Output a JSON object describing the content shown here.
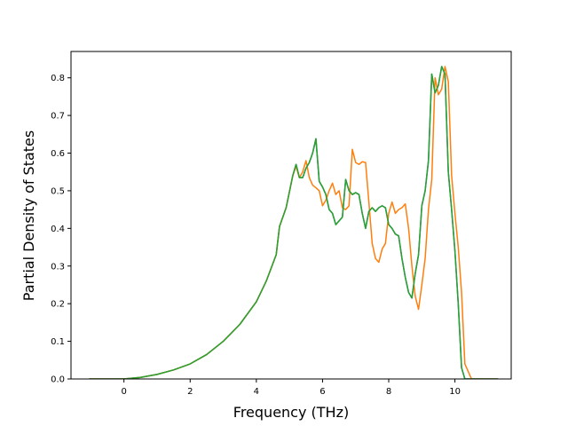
{
  "chart_data": {
    "type": "line",
    "xlabel": "Frequency (THz)",
    "ylabel": "Partial Density of States",
    "xlim": [
      -1.6,
      11.7
    ],
    "ylim": [
      0,
      0.87
    ],
    "xticks": [
      0,
      2,
      4,
      6,
      8,
      10
    ],
    "yticks": [
      0.0,
      0.1,
      0.2,
      0.3,
      0.4,
      0.5,
      0.6,
      0.7,
      0.8
    ],
    "xtick_labels": [
      "0",
      "2",
      "4",
      "6",
      "8",
      "10"
    ],
    "ytick_labels": [
      "0.0",
      "0.1",
      "0.2",
      "0.3",
      "0.4",
      "0.5",
      "0.6",
      "0.7",
      "0.8"
    ],
    "grid": false,
    "series": [
      {
        "color": "#1f77b4",
        "x": [
          -1.05,
          0.0,
          0.5,
          1.0,
          1.5,
          2.0,
          2.5,
          3.0,
          3.5,
          4.0,
          4.3,
          4.6,
          4.7,
          4.9,
          5.1,
          5.2,
          5.3,
          5.4,
          5.5,
          5.6,
          5.7,
          5.8,
          5.9,
          6.0,
          6.1,
          6.2,
          6.3,
          6.4,
          6.5,
          6.6,
          6.7,
          6.8,
          6.9,
          7.0,
          7.1,
          7.2,
          7.3,
          7.4,
          7.5,
          7.6,
          7.7,
          7.8,
          7.9,
          8.0,
          8.1,
          8.2,
          8.3,
          8.4,
          8.5,
          8.6,
          8.7,
          8.8,
          8.9,
          9.0,
          9.1,
          9.2,
          9.3,
          9.4,
          9.5,
          9.6,
          9.7,
          9.8,
          9.9,
          10.0,
          10.1,
          10.2,
          10.3,
          10.5,
          11.3
        ],
        "y": [
          0.0,
          0.0,
          0.004,
          0.012,
          0.024,
          0.04,
          0.065,
          0.1,
          0.145,
          0.205,
          0.26,
          0.33,
          0.405,
          0.455,
          0.54,
          0.57,
          0.535,
          0.535,
          0.56,
          0.575,
          0.6,
          0.638,
          0.525,
          0.51,
          0.49,
          0.45,
          0.44,
          0.41,
          0.42,
          0.43,
          0.53,
          0.5,
          0.49,
          0.495,
          0.49,
          0.44,
          0.4,
          0.445,
          0.455,
          0.445,
          0.455,
          0.46,
          0.455,
          0.41,
          0.4,
          0.385,
          0.38,
          0.32,
          0.27,
          0.23,
          0.215,
          0.28,
          0.33,
          0.46,
          0.5,
          0.58,
          0.81,
          0.76,
          0.78,
          0.83,
          0.81,
          0.55,
          0.45,
          0.34,
          0.2,
          0.03,
          0.0,
          0.0,
          0.0
        ]
      },
      {
        "color": "#ff7f0e",
        "x": [
          -1.05,
          0.0,
          0.5,
          1.0,
          1.5,
          2.0,
          2.5,
          3.0,
          3.5,
          4.0,
          4.3,
          4.6,
          4.7,
          4.9,
          5.1,
          5.2,
          5.3,
          5.4,
          5.5,
          5.6,
          5.7,
          5.8,
          5.9,
          6.0,
          6.1,
          6.2,
          6.3,
          6.4,
          6.5,
          6.6,
          6.7,
          6.8,
          6.9,
          7.0,
          7.1,
          7.2,
          7.3,
          7.4,
          7.5,
          7.6,
          7.7,
          7.8,
          7.9,
          8.0,
          8.1,
          8.2,
          8.3,
          8.4,
          8.5,
          8.6,
          8.7,
          8.8,
          8.9,
          9.0,
          9.1,
          9.2,
          9.3,
          9.4,
          9.5,
          9.6,
          9.7,
          9.8,
          9.9,
          10.0,
          10.1,
          10.2,
          10.3,
          10.5,
          11.3
        ],
        "y": [
          0.0,
          0.0,
          0.004,
          0.012,
          0.024,
          0.04,
          0.065,
          0.1,
          0.145,
          0.205,
          0.26,
          0.33,
          0.405,
          0.455,
          0.54,
          0.565,
          0.535,
          0.55,
          0.58,
          0.535,
          0.515,
          0.508,
          0.5,
          0.46,
          0.475,
          0.5,
          0.52,
          0.49,
          0.5,
          0.455,
          0.45,
          0.46,
          0.61,
          0.575,
          0.57,
          0.577,
          0.575,
          0.47,
          0.36,
          0.32,
          0.31,
          0.345,
          0.36,
          0.44,
          0.47,
          0.44,
          0.45,
          0.455,
          0.465,
          0.4,
          0.3,
          0.22,
          0.185,
          0.25,
          0.32,
          0.45,
          0.53,
          0.8,
          0.755,
          0.77,
          0.83,
          0.79,
          0.54,
          0.44,
          0.35,
          0.23,
          0.04,
          0.0,
          0.0
        ]
      },
      {
        "color": "#2ca02c",
        "x": [
          -1.05,
          0.0,
          0.5,
          1.0,
          1.5,
          2.0,
          2.5,
          3.0,
          3.5,
          4.0,
          4.3,
          4.6,
          4.7,
          4.9,
          5.1,
          5.2,
          5.3,
          5.4,
          5.5,
          5.6,
          5.7,
          5.8,
          5.9,
          6.0,
          6.1,
          6.2,
          6.3,
          6.4,
          6.5,
          6.6,
          6.7,
          6.8,
          6.9,
          7.0,
          7.1,
          7.2,
          7.3,
          7.4,
          7.5,
          7.6,
          7.7,
          7.8,
          7.9,
          8.0,
          8.1,
          8.2,
          8.3,
          8.4,
          8.5,
          8.6,
          8.7,
          8.8,
          8.9,
          9.0,
          9.1,
          9.2,
          9.3,
          9.4,
          9.5,
          9.6,
          9.7,
          9.8,
          9.9,
          10.0,
          10.1,
          10.2,
          10.3,
          10.5,
          11.3
        ],
        "y": [
          0.0,
          0.0,
          0.004,
          0.012,
          0.024,
          0.04,
          0.065,
          0.1,
          0.145,
          0.205,
          0.26,
          0.33,
          0.405,
          0.455,
          0.54,
          0.57,
          0.535,
          0.535,
          0.56,
          0.575,
          0.6,
          0.638,
          0.525,
          0.51,
          0.49,
          0.45,
          0.44,
          0.41,
          0.42,
          0.43,
          0.53,
          0.5,
          0.49,
          0.495,
          0.49,
          0.44,
          0.4,
          0.445,
          0.455,
          0.445,
          0.455,
          0.46,
          0.455,
          0.41,
          0.4,
          0.385,
          0.38,
          0.32,
          0.27,
          0.23,
          0.215,
          0.28,
          0.33,
          0.46,
          0.5,
          0.58,
          0.81,
          0.76,
          0.78,
          0.83,
          0.81,
          0.55,
          0.45,
          0.34,
          0.2,
          0.03,
          0.0,
          0.0,
          0.0
        ]
      }
    ]
  }
}
